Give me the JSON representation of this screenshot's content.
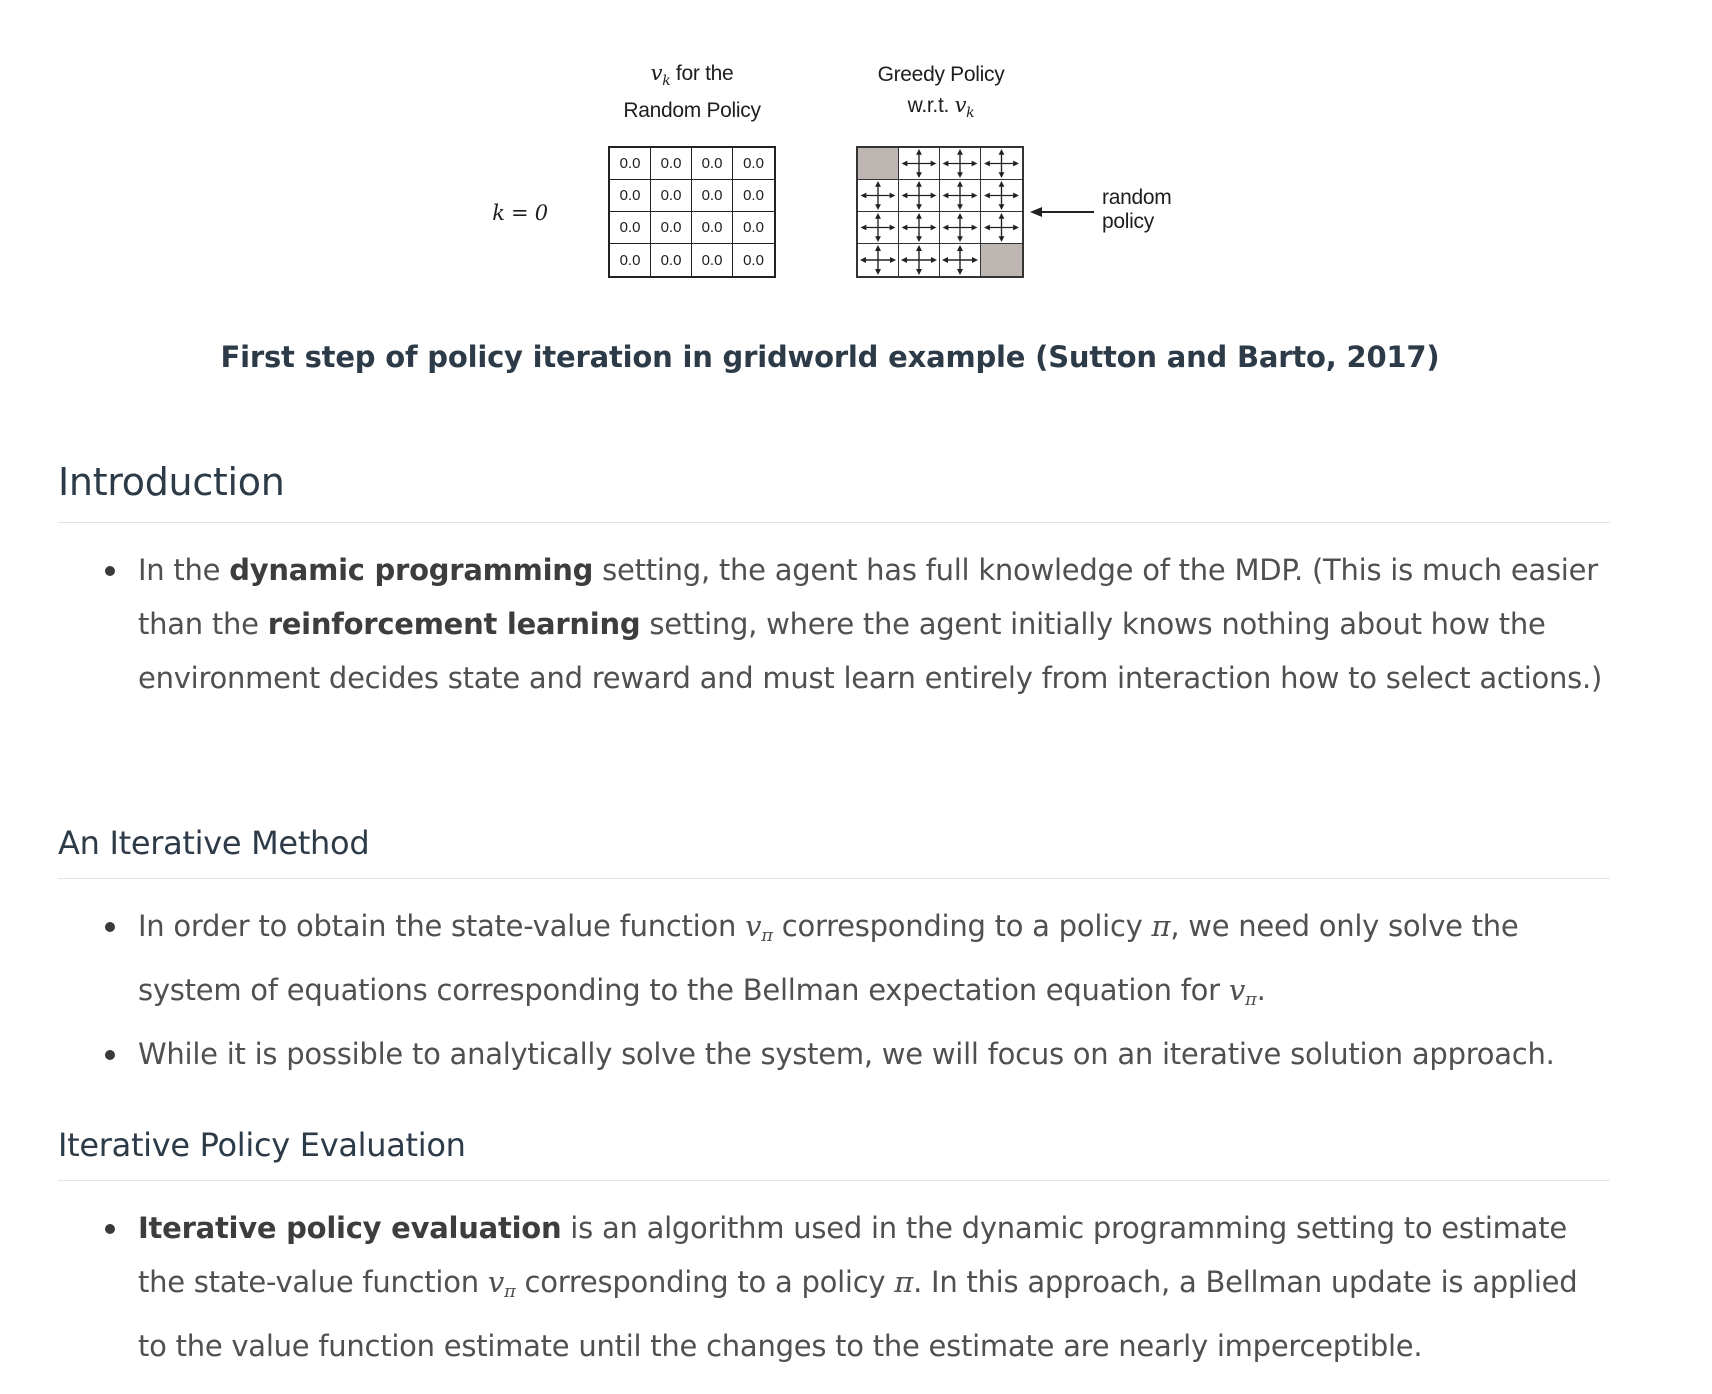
{
  "figure": {
    "k_label": "k = 0",
    "value_header": {
      "symbol": "v",
      "sub": "k",
      "line1_rest": " for the",
      "line2": "Random Policy"
    },
    "policy_header": {
      "line1": "Greedy Policy",
      "line2_pre": "w.r.t. ",
      "symbol": "v",
      "sub": "k"
    },
    "annotation": {
      "line1": "random",
      "line2": "policy"
    },
    "values": [
      "0.0",
      "0.0",
      "0.0",
      "0.0",
      "0.0",
      "0.0",
      "0.0",
      "0.0",
      "0.0",
      "0.0",
      "0.0",
      "0.0",
      "0.0",
      "0.0",
      "0.0",
      "0.0"
    ],
    "terminal_cells": [
      0,
      15
    ],
    "colors": {
      "terminal_fill": "#bdb6b3"
    }
  },
  "caption": "First step of policy iteration in gridworld example (Sutton and Barto, 2017)",
  "intro": {
    "heading": "Introduction",
    "b1_pre": "In the ",
    "b1_bold1": "dynamic programming",
    "b1_mid": " setting, the agent has full knowledge of the MDP. (This is much easier than the ",
    "b1_bold2": "reinforcement learning",
    "b1_post": " setting, where the agent initially knows nothing about how the environment decides state and reward and must learn entirely from interaction how to select actions.)"
  },
  "iterative": {
    "heading": "An Iterative Method",
    "b1_a": "In order to obtain the state-value function ",
    "b1_b": " corresponding to a policy ",
    "b1_c": ", we need only solve the system of equations corresponding to the Bellman expectation equation for ",
    "b1_d": ".",
    "b2": "While it is possible to analytically solve the system, we will focus on an iterative solution approach."
  },
  "ipe": {
    "heading": "Iterative Policy Evaluation",
    "b1_bold": "Iterative policy evaluation",
    "b1_a": " is an algorithm used in the dynamic programming setting to estimate the state-value function ",
    "b1_b": " corresponding to a policy ",
    "b1_c": ". In this approach, a Bellman update is applied to the value function estimate until the changes to the estimate are nearly imperceptible."
  },
  "math": {
    "v": "v",
    "pi": "π"
  }
}
